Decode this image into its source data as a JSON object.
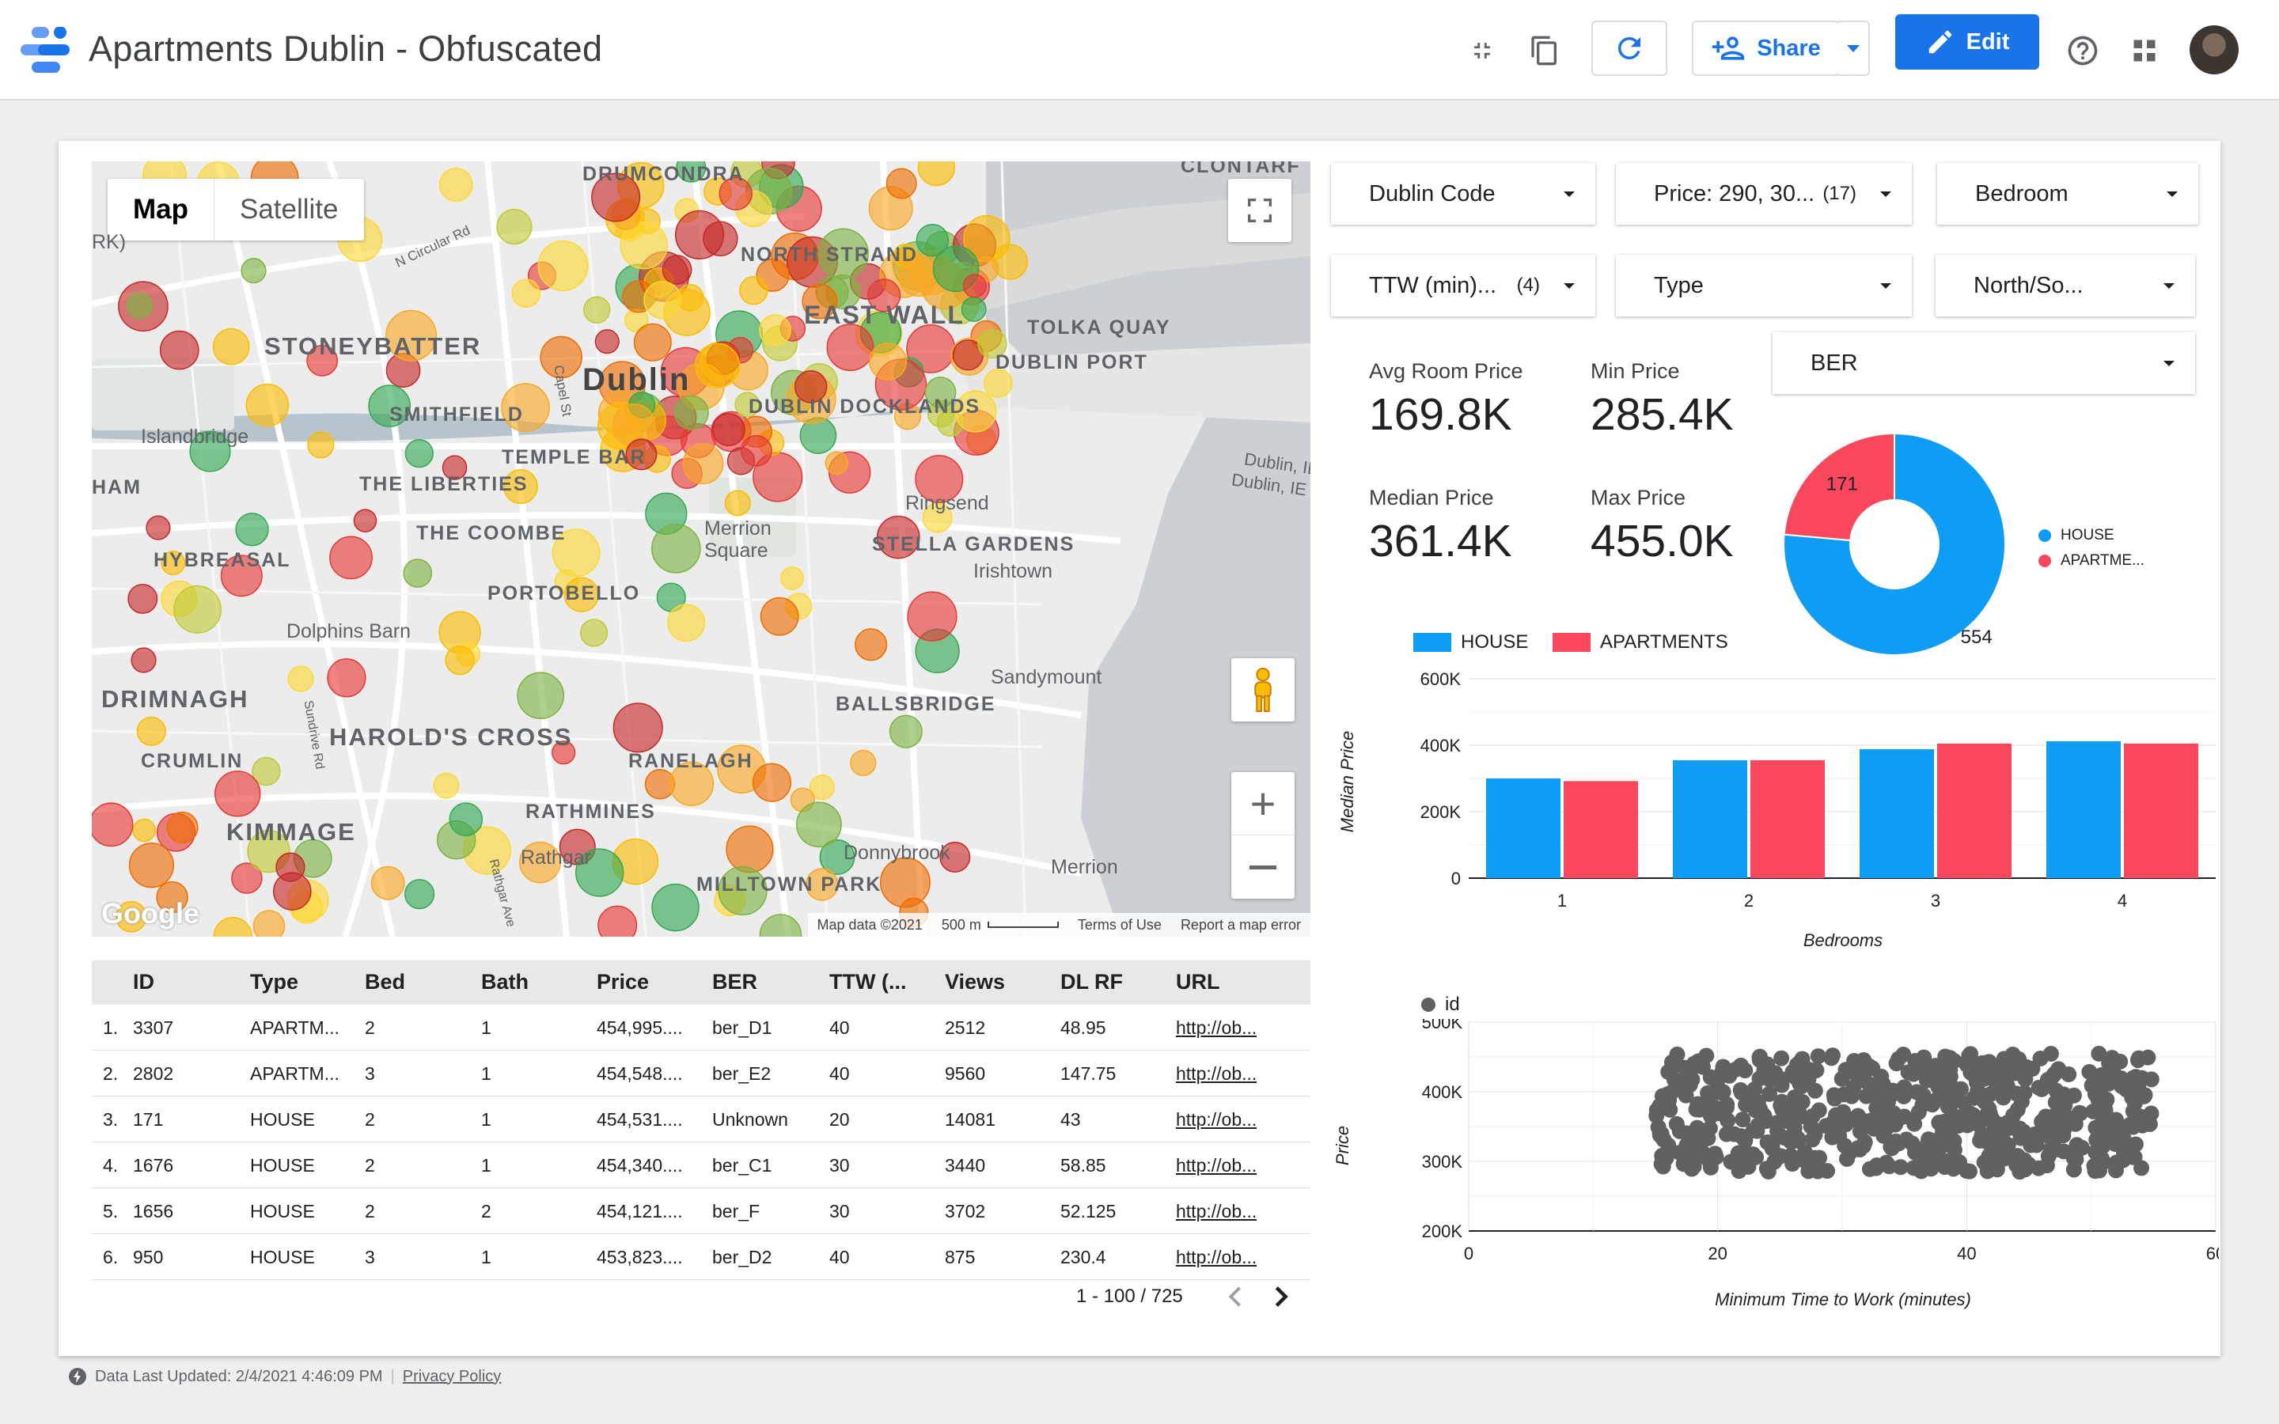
{
  "header": {
    "title": "Apartments Dublin - Obfuscated",
    "share_label": "Share",
    "edit_label": "Edit"
  },
  "map": {
    "tabs": [
      "Map",
      "Satellite"
    ],
    "labels": {
      "drumcondra": "DRUMCONDRA",
      "clontarf": "CLONTARF",
      "north_strand": "NORTH STRAND",
      "east_wall": "EAST WALL",
      "tolka_quay": "TOLKA QUAY",
      "dublin_port": "DUBLIN PORT",
      "stoneybatter": "STONEYBATTER",
      "dublin": "Dublin",
      "smithfield": "SMITHFIELD",
      "dublin_docklands": "DUBLIN DOCKLANDS",
      "islandbridge": "Islandbridge",
      "temple_bar": "TEMPLE BAR",
      "the_liberties": "THE LIBERTIES",
      "ham": "HAM",
      "the_coombe": "THE COOMBE",
      "merrion_square": "Merrion Square",
      "ringsend": "Ringsend",
      "stella_gardens": "STELLA GARDENS",
      "hybreasal": "HYBREASAL",
      "irishtown": "Irishtown",
      "portobello": "PORTOBELLO",
      "dolphins_barn": "Dolphins Barn",
      "sandymount": "Sandymount",
      "drimnagh": "DRIMNAGH",
      "ballsbridge": "BALLSBRIDGE",
      "harolds_cross": "HAROLD'S CROSS",
      "crumlin": "CRUMLIN",
      "ranelagh": "RANELAGH",
      "rathmines": "RATHMINES",
      "kimmage": "KIMMAGE",
      "rathgar": "Rathgar",
      "donnybrook": "Donnybrook",
      "merrion": "Merrion",
      "milltown_park": "MILLTOWN PARK",
      "dublin_ie_1": "Dublin, IE",
      "dublin_ie_2": "Dublin, IE",
      "n_circular_rd": "N Circular Rd",
      "capel_st": "Capel St",
      "sundrive_rd": "Sundrive Rd",
      "rathgar_ave": "Rathgar Ave",
      "rk": "RK)"
    },
    "footer": {
      "map_data": "Map data ©2021",
      "scale": "500 m",
      "terms": "Terms of Use",
      "report": "Report a map error"
    },
    "google": "Google"
  },
  "table": {
    "headers": [
      "ID",
      "Type",
      "Bed",
      "Bath",
      "Price",
      "BER",
      "TTW (...",
      "Views",
      "DL RF",
      "URL"
    ],
    "rows": [
      {
        "n": "1.",
        "id": "3307",
        "type": "APARTM...",
        "bed": "2",
        "bath": "1",
        "price": "454,995....",
        "ber": "ber_D1",
        "ttw": "40",
        "views": "2512",
        "dlrf": "48.95",
        "url": "http://ob..."
      },
      {
        "n": "2.",
        "id": "2802",
        "type": "APARTM...",
        "bed": "3",
        "bath": "1",
        "price": "454,548....",
        "ber": "ber_E2",
        "ttw": "40",
        "views": "9560",
        "dlrf": "147.75",
        "url": "http://ob..."
      },
      {
        "n": "3.",
        "id": "171",
        "type": "HOUSE",
        "bed": "2",
        "bath": "1",
        "price": "454,531....",
        "ber": "Unknown",
        "ttw": "20",
        "views": "14081",
        "dlrf": "43",
        "url": "http://ob..."
      },
      {
        "n": "4.",
        "id": "1676",
        "type": "HOUSE",
        "bed": "2",
        "bath": "1",
        "price": "454,340....",
        "ber": "ber_C1",
        "ttw": "30",
        "views": "3440",
        "dlrf": "58.85",
        "url": "http://ob..."
      },
      {
        "n": "5.",
        "id": "1656",
        "type": "HOUSE",
        "bed": "2",
        "bath": "2",
        "price": "454,121....",
        "ber": "ber_F",
        "ttw": "30",
        "views": "3702",
        "dlrf": "52.125",
        "url": "http://ob..."
      },
      {
        "n": "6.",
        "id": "950",
        "type": "HOUSE",
        "bed": "3",
        "bath": "1",
        "price": "453,823....",
        "ber": "ber_D2",
        "ttw": "40",
        "views": "875",
        "dlrf": "230.4",
        "url": "http://ob..."
      }
    ],
    "pagination": "1 - 100 / 725"
  },
  "filters": {
    "dublin_code": {
      "label": "Dublin Code",
      "count": ""
    },
    "price": {
      "label": "Price: 290, 30...",
      "count": "(17)"
    },
    "bedroom": {
      "label": "Bedroom",
      "count": ""
    },
    "ttw": {
      "label": "TTW (min)...",
      "count": "(4)"
    },
    "type": {
      "label": "Type",
      "count": ""
    },
    "north_south": {
      "label": "North/So...",
      "count": ""
    },
    "ber": {
      "label": "BER",
      "count": ""
    }
  },
  "scorecards": {
    "avg_room_price": {
      "label": "Avg Room Price",
      "value": "169.8K"
    },
    "min_price": {
      "label": "Min Price",
      "value": "285.4K"
    },
    "median_price": {
      "label": "Median Price",
      "value": "361.4K"
    },
    "max_price": {
      "label": "Max Price",
      "value": "455.0K"
    }
  },
  "colors": {
    "house": "#0e9cf5",
    "apartments": "#f9475e",
    "accent": "#1a73e8",
    "scatter": "#616161"
  },
  "chart_data": [
    {
      "type": "pie",
      "labels": [
        "HOUSE",
        "APARTME..."
      ],
      "values": [
        554,
        171
      ],
      "legend": "right",
      "donut": true
    },
    {
      "type": "bar",
      "categories": [
        "1",
        "2",
        "3",
        "4"
      ],
      "series": [
        {
          "name": "HOUSE",
          "values": [
            300000,
            355000,
            388000,
            412000
          ]
        },
        {
          "name": "APARTMENTS",
          "values": [
            292000,
            355000,
            405000,
            405000
          ]
        }
      ],
      "xlabel": "Bedrooms",
      "ylabel": "Median Price",
      "yticks": [
        "0",
        "200K",
        "400K",
        "600K"
      ],
      "ylim": [
        0,
        600000
      ],
      "legend": "top-left",
      "grid": true
    },
    {
      "type": "scatter",
      "series_name": "id",
      "xlabel": "Minimum Time to Work (minutes)",
      "ylabel": "Price",
      "xlim": [
        0,
        60
      ],
      "ylim": [
        200000,
        500000
      ],
      "xticks": [
        "0",
        "20",
        "40",
        "60"
      ],
      "yticks": [
        "200K",
        "300K",
        "400K",
        "500K"
      ],
      "point_count": 725,
      "x_range": [
        15,
        55
      ],
      "y_range": [
        285000,
        455000
      ],
      "legend": "top-left",
      "grid": true
    }
  ],
  "footer": {
    "updated": "Data Last Updated: 2/4/2021 4:46:09 PM",
    "privacy": "Privacy Policy"
  }
}
